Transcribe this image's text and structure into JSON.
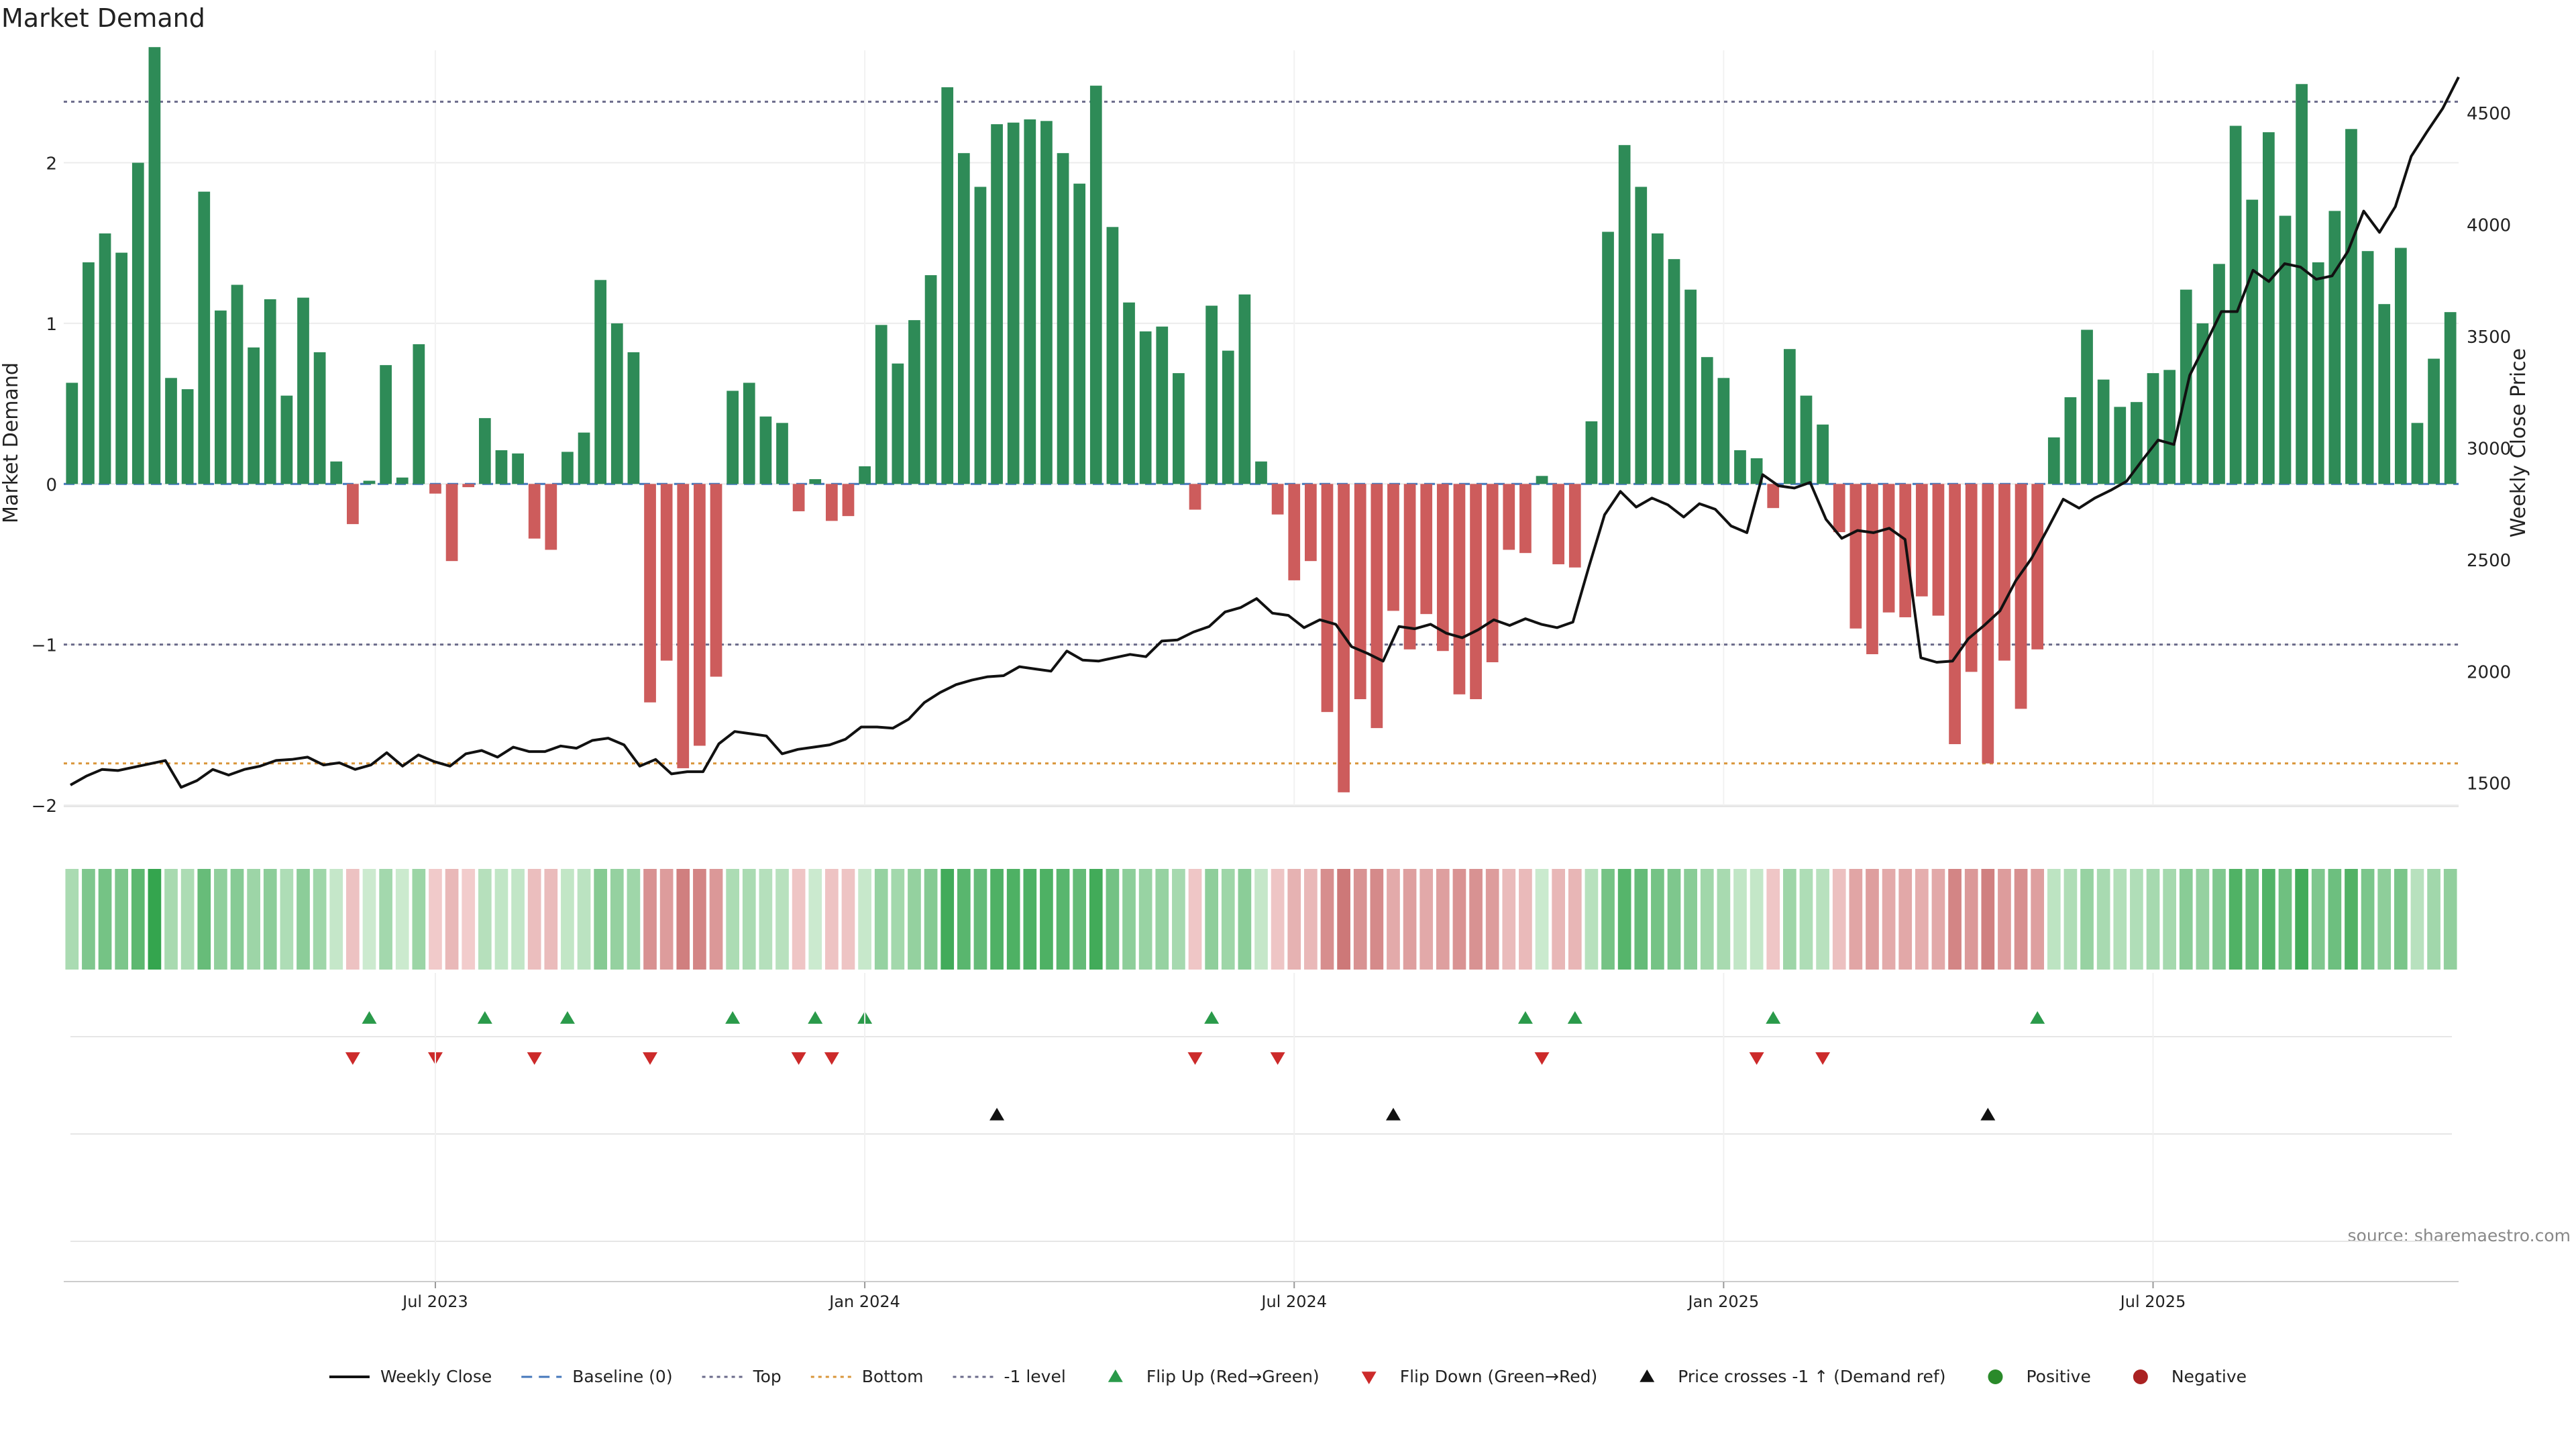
{
  "chart_data": {
    "type": "bar",
    "title": "Market Demand",
    "ylabel_left": "Market Demand",
    "ylabel_right": "Weekly Close Price",
    "source": "source: sharemaestro.com",
    "left_ylim": [
      -2.0,
      2.7
    ],
    "right_ylim": [
      1400,
      4780
    ],
    "left_yticks": [
      {
        "v": 2,
        "label": "2"
      },
      {
        "v": 1,
        "label": "1"
      },
      {
        "v": 0,
        "label": "0"
      },
      {
        "v": -1,
        "label": "−1"
      },
      {
        "v": -2,
        "label": "−2"
      }
    ],
    "right_yticks": [
      {
        "v": 4500,
        "label": "4500"
      },
      {
        "v": 4000,
        "label": "4000"
      },
      {
        "v": 3500,
        "label": "3500"
      },
      {
        "v": 3000,
        "label": "3000"
      },
      {
        "v": 2500,
        "label": "2500"
      },
      {
        "v": 2000,
        "label": "2000"
      },
      {
        "v": 1500,
        "label": "1500"
      }
    ],
    "xticks": [
      {
        "index": 22,
        "label": "Jul 2023"
      },
      {
        "index": 48,
        "label": "Jan 2024"
      },
      {
        "index": 74,
        "label": "Jul 2024"
      },
      {
        "index": 100,
        "label": "Jan 2025"
      },
      {
        "index": 126,
        "label": "Jul 2025"
      }
    ],
    "reference_lines": {
      "top": 2.38,
      "bottom": -1.74,
      "minus_one": -1.0,
      "baseline": 0
    },
    "demand": [
      0.63,
      1.38,
      1.56,
      1.44,
      2.0,
      2.72,
      0.66,
      0.59,
      1.82,
      1.08,
      1.24,
      0.85,
      1.15,
      0.55,
      1.16,
      0.82,
      0.14,
      -0.25,
      0.02,
      0.74,
      0.04,
      0.87,
      -0.06,
      -0.48,
      -0.02,
      0.41,
      0.21,
      0.19,
      -0.34,
      -0.41,
      0.2,
      0.32,
      1.27,
      1.0,
      0.82,
      -1.36,
      -1.1,
      -1.77,
      -1.63,
      -1.2,
      0.58,
      0.63,
      0.42,
      0.38,
      -0.17,
      0.03,
      -0.23,
      -0.2,
      0.11,
      0.99,
      0.75,
      1.02,
      1.3,
      2.47,
      2.06,
      1.85,
      2.24,
      2.25,
      2.27,
      2.26,
      2.06,
      1.87,
      2.48,
      1.6,
      1.13,
      0.95,
      0.98,
      0.69,
      -0.16,
      1.11,
      0.83,
      1.18,
      0.14,
      -0.19,
      -0.6,
      -0.48,
      -1.42,
      -1.92,
      -1.34,
      -1.52,
      -0.79,
      -1.03,
      -0.81,
      -1.04,
      -1.31,
      -1.34,
      -1.11,
      -0.41,
      -0.43,
      0.05,
      -0.5,
      -0.52,
      0.39,
      1.57,
      2.11,
      1.85,
      1.56,
      1.4,
      1.21,
      0.79,
      0.66,
      0.21,
      0.16,
      -0.15,
      0.84,
      0.55,
      0.37,
      -0.3,
      -0.9,
      -1.06,
      -0.8,
      -0.83,
      -0.7,
      -0.82,
      -1.62,
      -1.17,
      -1.74,
      -1.1,
      -1.4,
      -1.03,
      0.29,
      0.54,
      0.96,
      0.65,
      0.48,
      0.51,
      0.69,
      0.71,
      1.21,
      1.0,
      1.37,
      2.23,
      1.77,
      2.19,
      1.67,
      2.49,
      1.38,
      1.7,
      2.21,
      1.45,
      1.12,
      1.47,
      0.38,
      0.78,
      1.07
    ],
    "weekly_close": [
      1490,
      1530,
      1560,
      1555,
      1570,
      1585,
      1600,
      1480,
      1510,
      1560,
      1535,
      1560,
      1575,
      1600,
      1605,
      1615,
      1580,
      1590,
      1560,
      1580,
      1635,
      1575,
      1625,
      1595,
      1575,
      1630,
      1645,
      1615,
      1660,
      1640,
      1640,
      1665,
      1655,
      1690,
      1700,
      1670,
      1575,
      1605,
      1540,
      1550,
      1550,
      1675,
      1730,
      1720,
      1710,
      1630,
      1650,
      1660,
      1670,
      1695,
      1750,
      1750,
      1745,
      1785,
      1860,
      1905,
      1940,
      1960,
      1975,
      1980,
      2020,
      2010,
      2000,
      2090,
      2050,
      2045,
      2060,
      2075,
      2065,
      2135,
      2140,
      2175,
      2200,
      2265,
      2285,
      2325,
      2260,
      2250,
      2195,
      2230,
      2210,
      2110,
      2080,
      2045,
      2200,
      2190,
      2210,
      2170,
      2150,
      2185,
      2230,
      2205,
      2235,
      2210,
      2195,
      2220,
      2465,
      2700,
      2805,
      2735,
      2775,
      2745,
      2690,
      2750,
      2725,
      2650,
      2620,
      2880,
      2830,
      2820,
      2845,
      2680,
      2595,
      2630,
      2620,
      2640,
      2590,
      2060,
      2040,
      2045,
      2145,
      2205,
      2270,
      2405,
      2505,
      2635,
      2770,
      2730,
      2775,
      2810,
      2850,
      2945,
      3035,
      3015,
      3325,
      3465,
      3610,
      3610,
      3795,
      3745,
      3825,
      3810,
      3755,
      3770,
      3880,
      4060,
      3965,
      4080,
      4305,
      4415,
      4520,
      4660
    ]
  },
  "markers": {
    "flip_up_indices": [
      18,
      25,
      30,
      40,
      45,
      48,
      69,
      88,
      91,
      103,
      119
    ],
    "flip_down_indices": [
      17,
      22,
      28,
      35,
      44,
      46,
      68,
      73,
      89,
      102,
      106
    ],
    "price_cross_indices": [
      56,
      80,
      116
    ]
  },
  "legend": [
    {
      "key": "weekly_close",
      "label": "Weekly Close",
      "kind": "line",
      "color": "#111111"
    },
    {
      "key": "baseline",
      "label": "Baseline (0)",
      "kind": "dash",
      "color": "#4477bb"
    },
    {
      "key": "top",
      "label": "Top",
      "kind": "dot",
      "color": "#6a6a8a"
    },
    {
      "key": "bottom",
      "label": "Bottom",
      "kind": "dot",
      "color": "#d9963a"
    },
    {
      "key": "minus_one",
      "label": "-1 level",
      "kind": "dot",
      "color": "#6a6a8a"
    },
    {
      "key": "flip_up",
      "label": "Flip Up (Red→Green)",
      "kind": "tri-up",
      "color": "#2a9a4a"
    },
    {
      "key": "flip_down",
      "label": "Flip Down (Green→Red)",
      "kind": "tri-down",
      "color": "#cc2a2a"
    },
    {
      "key": "price_cross",
      "label": "Price crosses -1 ↑ (Demand ref)",
      "kind": "tri-up",
      "color": "#111111"
    },
    {
      "key": "positive",
      "label": "Positive",
      "kind": "circle",
      "color": "#2a8a2a"
    },
    {
      "key": "negative",
      "label": "Negative",
      "kind": "circle",
      "color": "#aa2222"
    }
  ],
  "colors": {
    "positive_bar": "#2e8b57",
    "negative_bar": "#cd5c5c",
    "close_line": "#111111",
    "grid": "#ececec",
    "axis_text": "#222222"
  }
}
